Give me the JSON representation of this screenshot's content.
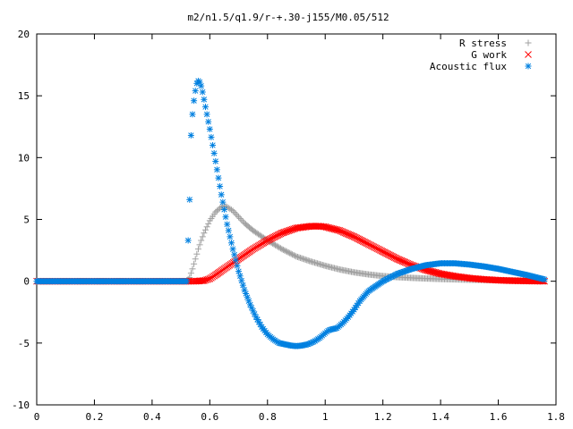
{
  "chart_data": {
    "type": "scatter",
    "title": "m2/n1.5/q1.9/r-+.30-j155/M0.05/512",
    "xlabel": "",
    "ylabel": "",
    "xlim": [
      0,
      1.8
    ],
    "ylim": [
      -10,
      20
    ],
    "x_ticks": [
      "0",
      "0.2",
      "0.4",
      "0.6",
      "0.8",
      "1",
      "1.2",
      "1.4",
      "1.6",
      "1.8"
    ],
    "y_ticks": [
      "20",
      "15",
      "10",
      "5",
      "0",
      "-5",
      "-10"
    ],
    "grid": false,
    "legend_position": "top-right",
    "series": [
      {
        "name": "R stress",
        "marker": "plus",
        "color": "#a0a0a0",
        "x": [
          0.0,
          0.1,
          0.2,
          0.3,
          0.4,
          0.5,
          0.52,
          0.53,
          0.54,
          0.55,
          0.56,
          0.57,
          0.58,
          0.6,
          0.62,
          0.64,
          0.65,
          0.66,
          0.68,
          0.7,
          0.72,
          0.75,
          0.8,
          0.85,
          0.9,
          0.95,
          1.0,
          1.05,
          1.1,
          1.15,
          1.2,
          1.25,
          1.3,
          1.35,
          1.4,
          1.45,
          1.5,
          1.6,
          1.7,
          1.76
        ],
        "y": [
          0,
          0,
          0,
          0,
          0,
          0,
          0,
          0.3,
          1.0,
          1.8,
          2.6,
          3.3,
          3.9,
          4.9,
          5.6,
          6.0,
          6.1,
          6.0,
          5.7,
          5.2,
          4.7,
          4.1,
          3.3,
          2.6,
          2.0,
          1.6,
          1.25,
          0.95,
          0.72,
          0.55,
          0.42,
          0.33,
          0.27,
          0.22,
          0.18,
          0.15,
          0.12,
          0.08,
          0.05,
          0.03
        ]
      },
      {
        "name": "G work",
        "marker": "cross",
        "color": "#ff0000",
        "x": [
          0.0,
          0.1,
          0.2,
          0.3,
          0.4,
          0.5,
          0.53,
          0.55,
          0.58,
          0.6,
          0.62,
          0.65,
          0.7,
          0.75,
          0.8,
          0.85,
          0.9,
          0.95,
          0.98,
          1.0,
          1.05,
          1.1,
          1.15,
          1.2,
          1.25,
          1.3,
          1.35,
          1.4,
          1.45,
          1.5,
          1.55,
          1.6,
          1.65,
          1.7,
          1.76
        ],
        "y": [
          0,
          0,
          0,
          0,
          0,
          0,
          0,
          0.0,
          0.05,
          0.2,
          0.5,
          1.0,
          1.8,
          2.6,
          3.3,
          3.9,
          4.3,
          4.45,
          4.45,
          4.4,
          4.1,
          3.6,
          3.0,
          2.4,
          1.8,
          1.3,
          0.9,
          0.6,
          0.4,
          0.25,
          0.15,
          0.08,
          0.04,
          0.02,
          0.0
        ]
      },
      {
        "name": "Acoustic flux",
        "marker": "star",
        "color": "#0080e0",
        "x": [
          0.0,
          0.1,
          0.2,
          0.3,
          0.4,
          0.5,
          0.52,
          0.53,
          0.535,
          0.54,
          0.545,
          0.55,
          0.555,
          0.56,
          0.565,
          0.57,
          0.575,
          0.58,
          0.6,
          0.62,
          0.64,
          0.66,
          0.68,
          0.7,
          0.72,
          0.74,
          0.76,
          0.78,
          0.8,
          0.82,
          0.84,
          0.86,
          0.88,
          0.9,
          0.92,
          0.94,
          0.96,
          0.98,
          0.99,
          1.0,
          1.01,
          1.02,
          1.04,
          1.06,
          1.08,
          1.1,
          1.12,
          1.15,
          1.2,
          1.25,
          1.3,
          1.35,
          1.4,
          1.45,
          1.5,
          1.55,
          1.6,
          1.65,
          1.7,
          1.76
        ],
        "y": [
          0,
          0,
          0,
          0,
          0,
          0,
          0,
          6.6,
          11.8,
          13.5,
          14.6,
          15.4,
          16.0,
          16.2,
          16.1,
          15.8,
          15.3,
          14.7,
          12.3,
          9.7,
          7.0,
          4.6,
          2.6,
          0.8,
          -0.7,
          -1.9,
          -2.9,
          -3.7,
          -4.3,
          -4.7,
          -5.0,
          -5.1,
          -5.2,
          -5.25,
          -5.2,
          -5.1,
          -4.9,
          -4.6,
          -4.4,
          -4.2,
          -4.0,
          -3.9,
          -3.8,
          -3.4,
          -2.9,
          -2.3,
          -1.6,
          -0.8,
          0.0,
          0.6,
          1.0,
          1.3,
          1.45,
          1.45,
          1.35,
          1.2,
          1.0,
          0.75,
          0.5,
          0.15
        ]
      }
    ]
  }
}
